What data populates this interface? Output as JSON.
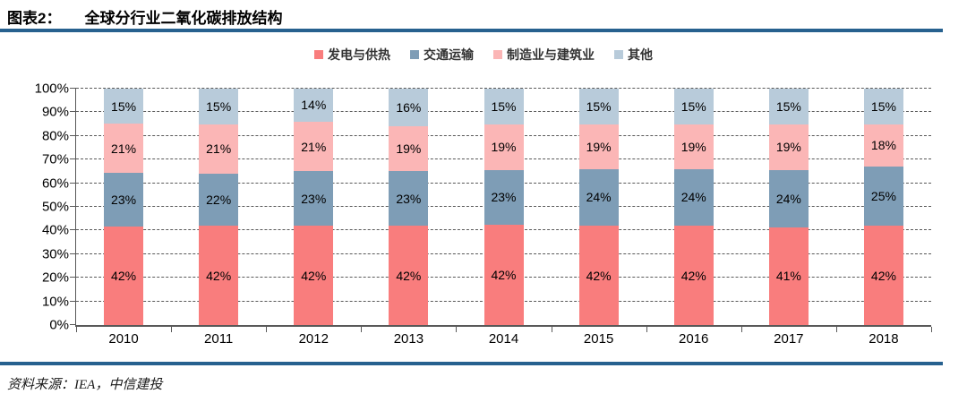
{
  "header": {
    "chart_label": "图表2：",
    "title": "全球分行业二氧化碳排放结构"
  },
  "source": {
    "text": "资料来源：IEA，中信建投"
  },
  "colors": {
    "rule_blue": "#27618F",
    "power": "#F97D7D",
    "transport": "#7E9DB6",
    "manufacturing": "#FBB6B6",
    "other": "#B8CBDA",
    "axis": "#595959",
    "grid": "#595959",
    "label_text": "#000000"
  },
  "chart_data": {
    "type": "bar",
    "subtype": "stacked-100-percent",
    "title": "全球分行业二氧化碳排放结构",
    "xlabel": "",
    "ylabel": "",
    "ylim": [
      0,
      100
    ],
    "y_tick_step": 10,
    "y_tick_labels": [
      "0%",
      "10%",
      "20%",
      "30%",
      "40%",
      "50%",
      "60%",
      "70%",
      "80%",
      "90%",
      "100%"
    ],
    "grid": "horizontal-dashed",
    "legend_position": "top-center",
    "categories": [
      "2010",
      "2011",
      "2012",
      "2013",
      "2014",
      "2015",
      "2016",
      "2017",
      "2018"
    ],
    "series": [
      {
        "name": "发电与供热",
        "color_key": "power",
        "values": [
          42,
          42,
          42,
          42,
          42,
          42,
          42,
          41,
          42
        ]
      },
      {
        "name": "交通运输",
        "color_key": "transport",
        "values": [
          23,
          22,
          23,
          23,
          23,
          24,
          24,
          24,
          25
        ]
      },
      {
        "name": "制造业与建筑业",
        "color_key": "manufacturing",
        "values": [
          21,
          21,
          21,
          19,
          19,
          19,
          19,
          19,
          18
        ]
      },
      {
        "name": "其他",
        "color_key": "other",
        "values": [
          15,
          15,
          14,
          16,
          15,
          15,
          15,
          15,
          15
        ]
      }
    ],
    "data_label_suffix": "%"
  }
}
